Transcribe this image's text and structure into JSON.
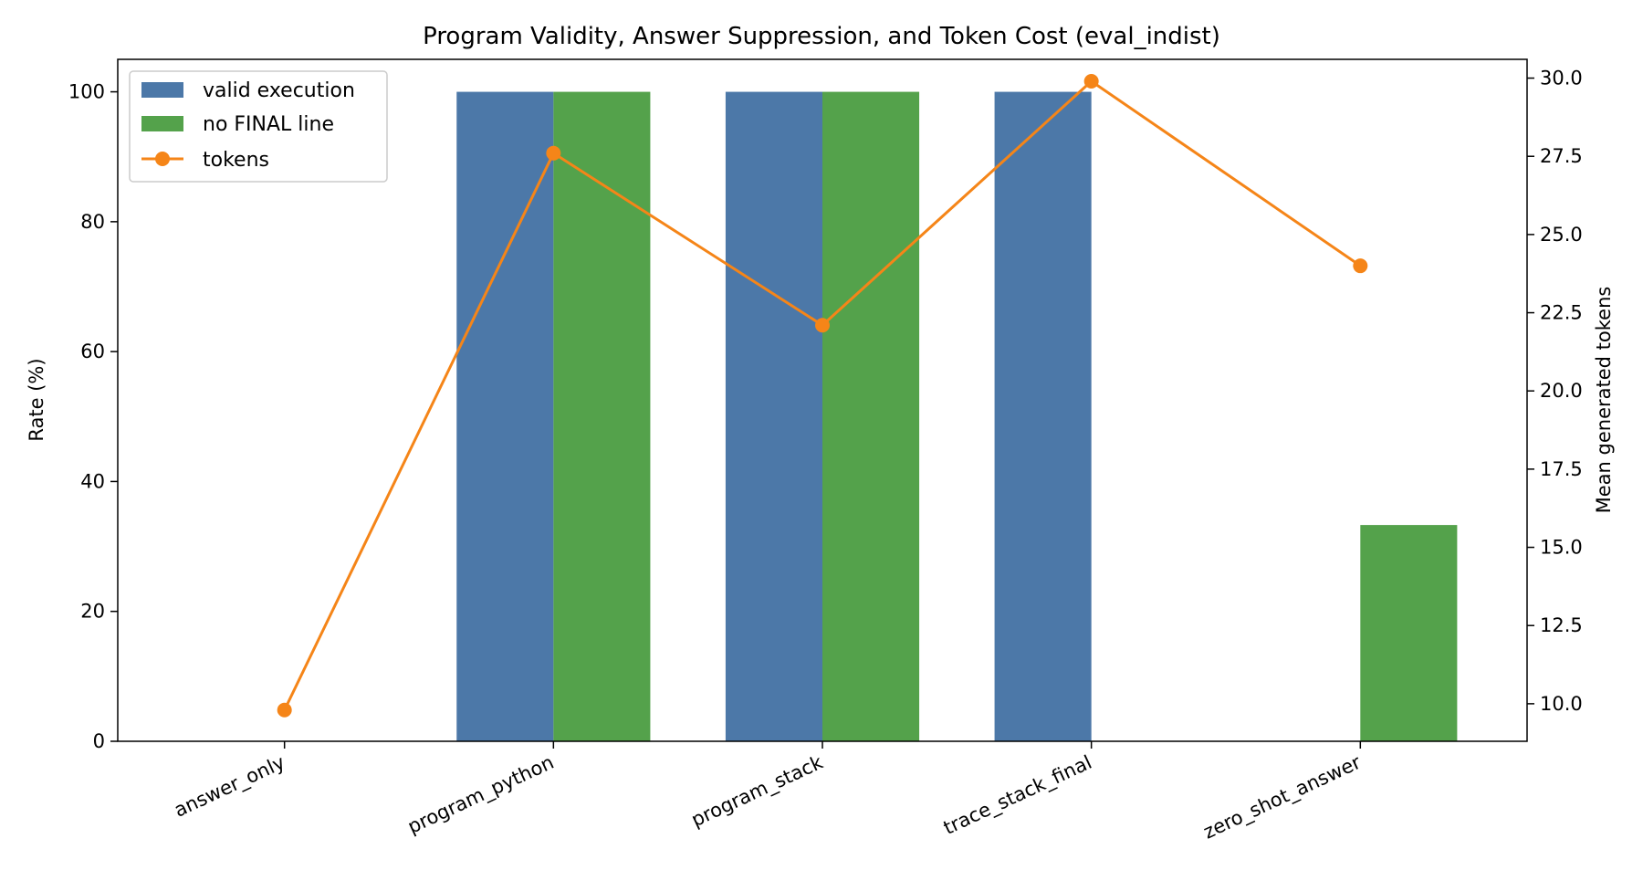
{
  "chart_data": {
    "type": "bar",
    "title": "Program Validity, Answer Suppression, and Token Cost (eval_indist)",
    "xlabel": "",
    "ylabel": "Rate (%)",
    "y2label": "Mean generated tokens",
    "categories": [
      "answer_only",
      "program_python",
      "program_stack",
      "trace_stack_final",
      "zero_shot_answer"
    ],
    "ylim": [
      0,
      105
    ],
    "y2lim": [
      8.8,
      30.6
    ],
    "yticks": [
      "0",
      "20",
      "40",
      "60",
      "80",
      "100"
    ],
    "y2ticks": [
      "10.0",
      "12.5",
      "15.0",
      "17.5",
      "20.0",
      "22.5",
      "25.0",
      "27.5",
      "30.0"
    ],
    "grid": false,
    "legend_position": "top-left",
    "series": [
      {
        "name": "valid execution",
        "type": "bar",
        "axis": "left",
        "color": "#4c78a8",
        "values": [
          0,
          100,
          100,
          100,
          0
        ]
      },
      {
        "name": "no FINAL line",
        "type": "bar",
        "axis": "left",
        "color": "#54a24b",
        "values": [
          0,
          100,
          100,
          0,
          33.3
        ]
      },
      {
        "name": "tokens",
        "type": "line",
        "axis": "right",
        "color": "#f58518",
        "marker": "circle",
        "values": [
          9.8,
          27.6,
          22.1,
          29.9,
          24.0
        ]
      }
    ]
  }
}
